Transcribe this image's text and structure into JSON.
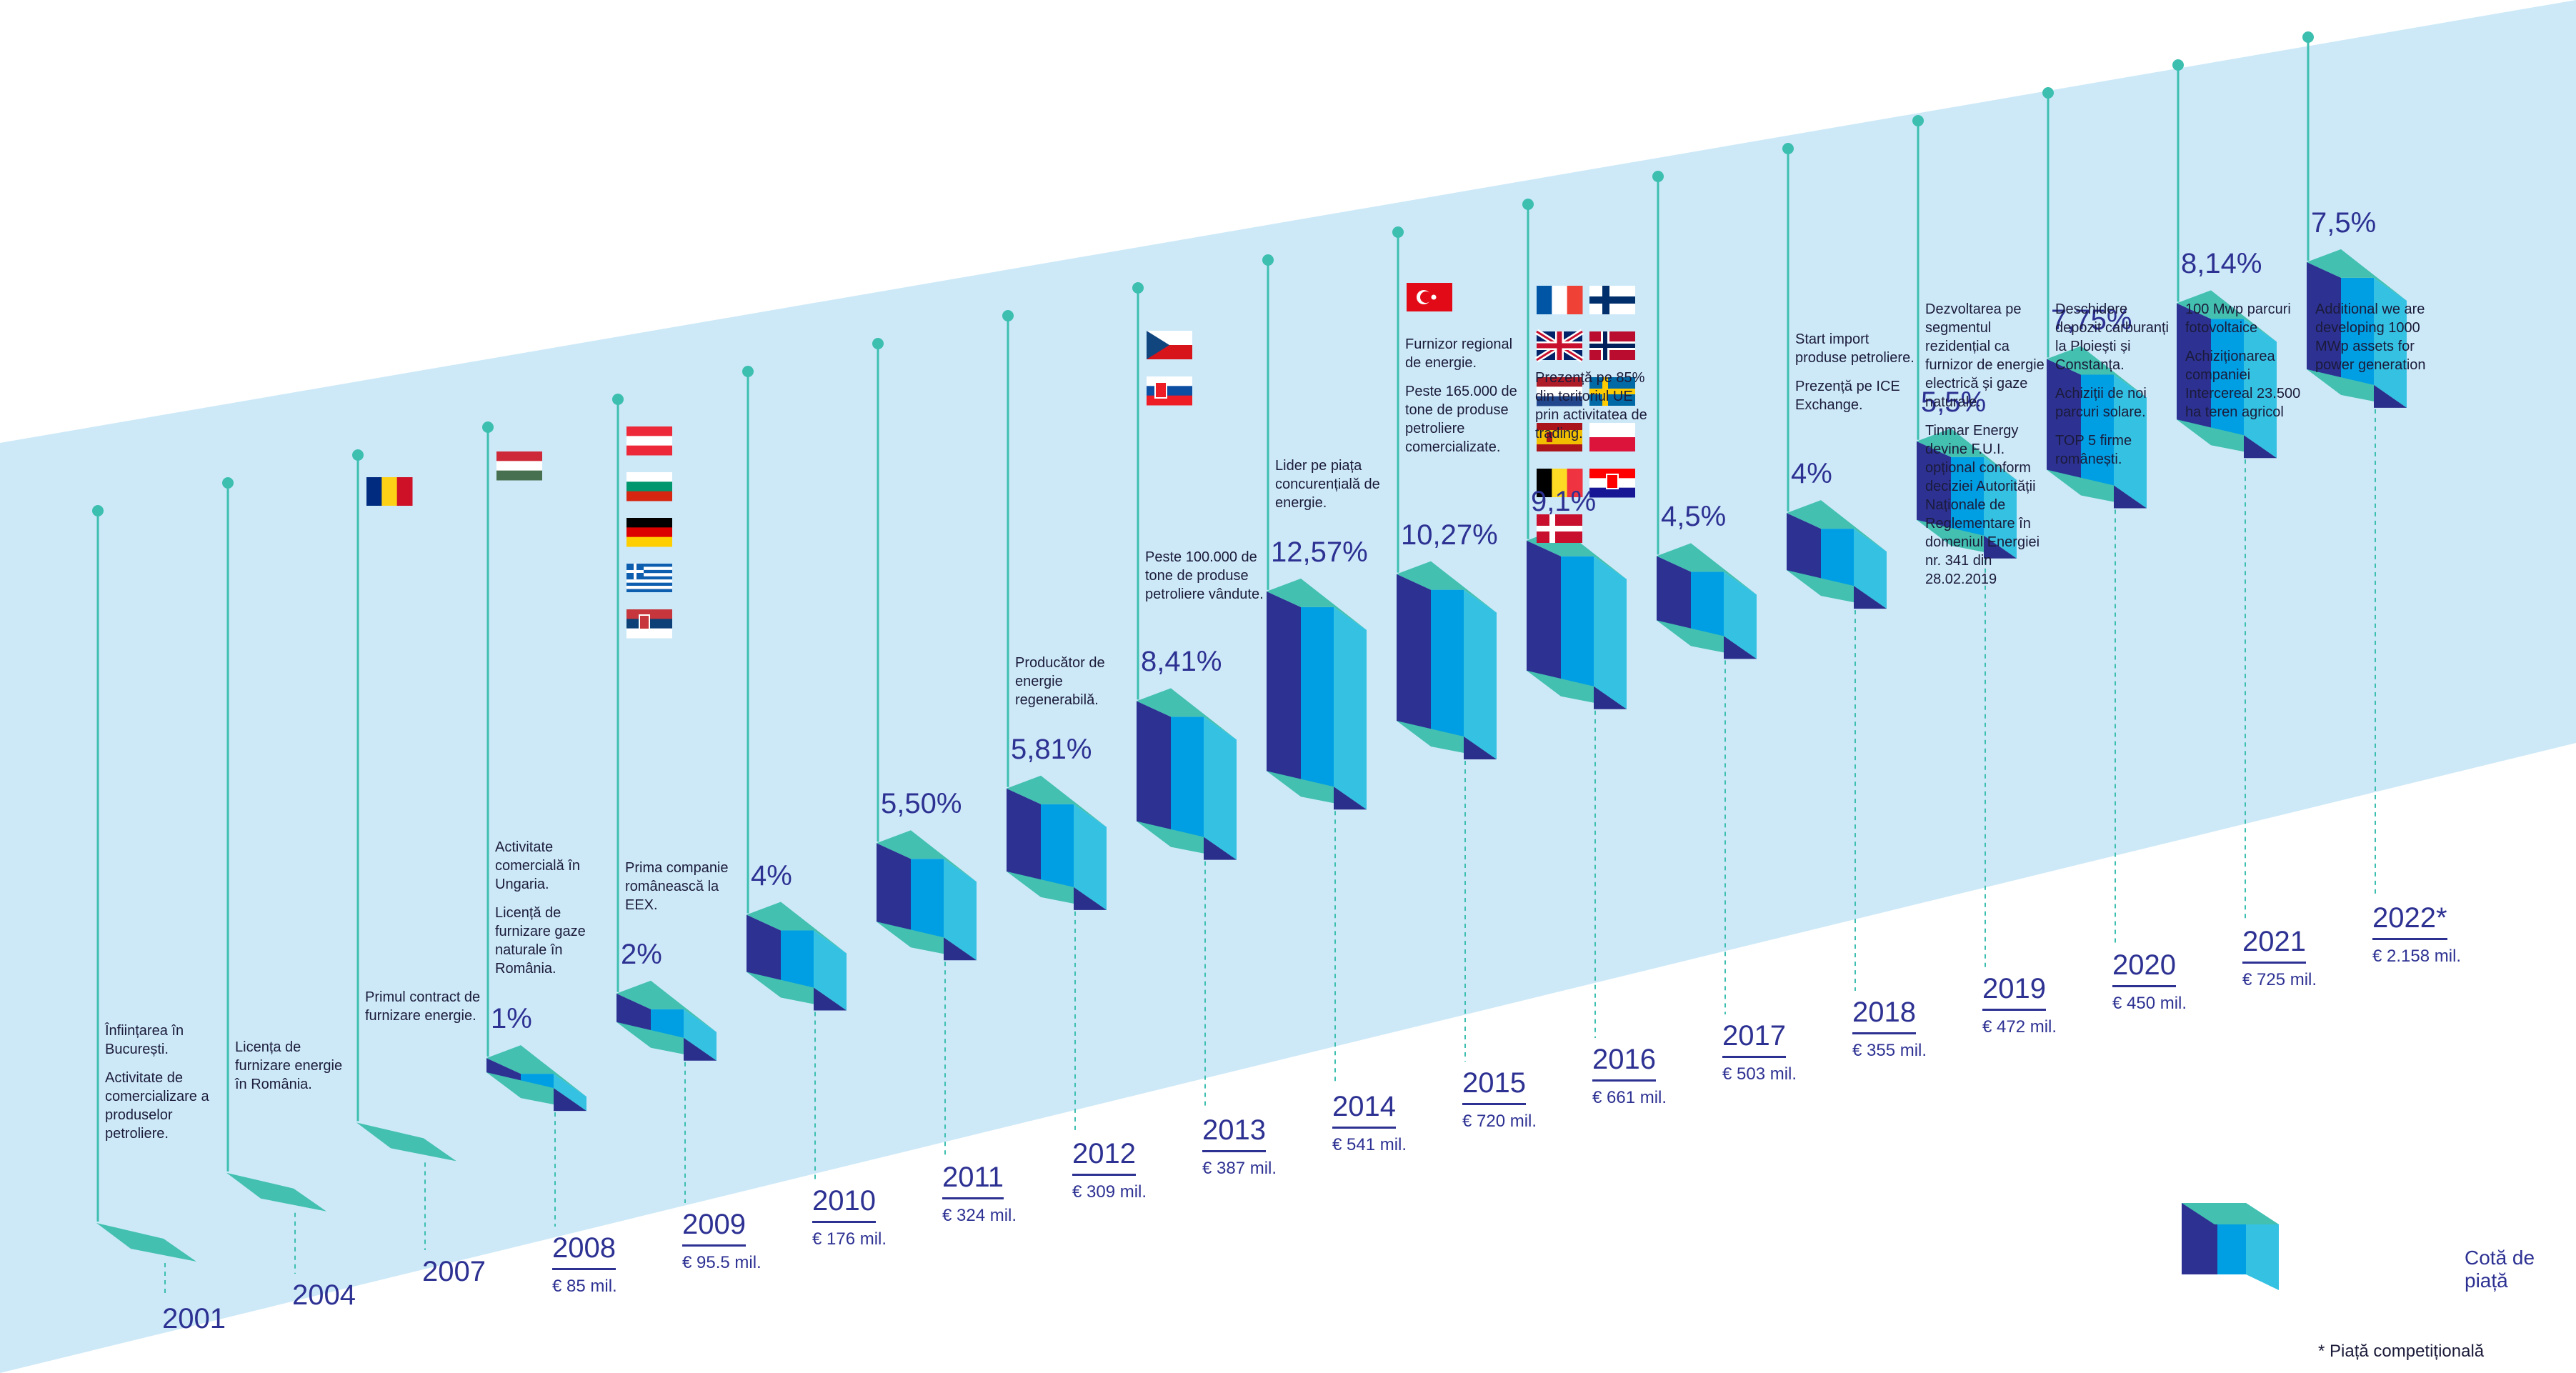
{
  "chart_data": {
    "type": "bar",
    "categories": [
      "2001",
      "2004",
      "2007",
      "2008",
      "2009",
      "2010",
      "2011",
      "2012",
      "2013",
      "2014",
      "2015",
      "2016",
      "2017",
      "2018",
      "2019",
      "2020",
      "2021",
      "2022*"
    ],
    "series": [
      {
        "name": "Cotă de piață",
        "values": [
          0,
          0,
          0,
          1,
          2,
          4,
          5.5,
          5.81,
          8.41,
          12.57,
          10.27,
          9.1,
          4.5,
          4,
          5.5,
          7.75,
          8.14,
          7.5
        ]
      }
    ],
    "value_labels": [
      "",
      "",
      "",
      "1%",
      "2%",
      "4%",
      "5,50%",
      "5,81%",
      "8,41%",
      "12,57%",
      "10,27%",
      "9,1%",
      "4,5%",
      "4%",
      "5,5%",
      "7,75%",
      "8,14%",
      "7,5%"
    ],
    "revenue_labels": [
      "",
      "",
      "",
      "€ 85 mil.",
      "€ 95.5 mil.",
      "€ 176 mil.",
      "€ 324 mil.",
      "€ 309 mil.",
      "€ 387 mil.",
      "€ 541 mil.",
      "€ 720 mil.",
      "€ 661 mil.",
      "€ 503 mil.",
      "€ 355 mil.",
      "€ 472 mil.",
      "€ 450 mil.",
      "€ 725 mil.",
      "€ 2.158 mil."
    ],
    "legend": [
      "Cotă de piață"
    ],
    "footnote": "* Piață competițională"
  },
  "milestones": [
    [
      "Înființarea în București.",
      "Activitate de comercializare a produselor petroliere."
    ],
    [
      "Licența de furnizare energie în România."
    ],
    [
      "Primul contract de furnizare energie."
    ],
    [
      "Activitate comercială în Ungaria.",
      "Licență de furnizare gaze naturale în România."
    ],
    [
      "Prima companie românească la EEX."
    ],
    [],
    [],
    [
      "Producător de energie regenerabilă."
    ],
    [
      "Peste 100.000 de tone de produse petroliere vândute."
    ],
    [
      "Lider pe piața concurențială de energie."
    ],
    [
      "Furnizor regional de energie.",
      "Peste 165.000 de tone de produse petroliere comercializate."
    ],
    [
      "Prezență pe 85% din teritoriul UE prin activitatea de trading."
    ],
    [],
    [
      "Start import produse petroliere.",
      "Prezență pe ICE Exchange."
    ],
    [
      "Dezvoltarea pe segmentul rezidențial ca furnizor de energie electrică și gaze naturale.",
      "Tinmar Energy devine F.U.I. opțional conform deciziei Autorității Naționale de Reglementare în domeniul Energiei nr. 341 din 28.02.2019"
    ],
    [
      "Deschidere depozit carburanți la Ploiești și Constanța.",
      "Achiziții de noi parcuri solare.",
      "TOP 5 firme românești."
    ],
    [
      "100 Mwp parcuri fotovoltaice",
      "Achiziționarea companiei Intercereal 23.500 ha teren agricol"
    ],
    [
      "Additional we are developing 1000 MWp assets for power generation"
    ]
  ],
  "flags": [
    {
      "year_index": 2,
      "items": [
        "romania"
      ]
    },
    {
      "year_index": 3,
      "items": [
        "hungary"
      ]
    },
    {
      "year_index": 4,
      "items": [
        "austria",
        "bulgaria",
        "germany",
        "greece",
        "serbia"
      ]
    },
    {
      "year_index": 8,
      "items": [
        "czechia",
        "slovakia"
      ]
    },
    {
      "year_index": 10,
      "items": [
        "turkey"
      ]
    },
    {
      "year_index": 11,
      "items": [
        "france",
        "finland",
        "united-kingdom",
        "norway",
        "netherlands",
        "sweden",
        "spain",
        "poland",
        "belgium",
        "croatia",
        "denmark"
      ]
    }
  ],
  "colors": {
    "band": "#cde9f8",
    "front": "#009fe3",
    "side": "#2d3192",
    "right": "#35c2e2",
    "top": "#43c0b0",
    "bottom": "#2b2f8c",
    "stem": "#3dbfb0",
    "text": "#2d3192"
  }
}
